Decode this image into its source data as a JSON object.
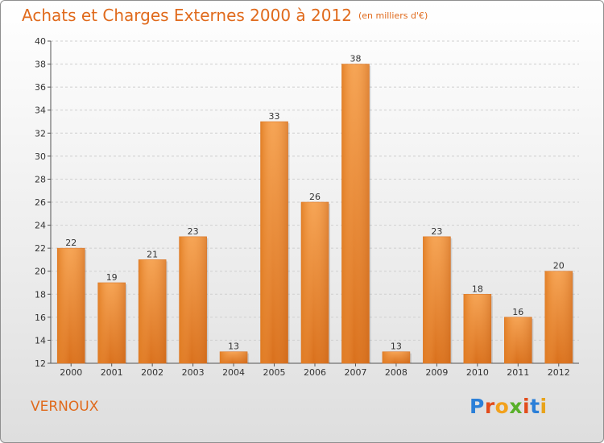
{
  "header": {
    "title": "Achats et Charges Externes 2000 à 2012",
    "unit": "(en milliers d'€)"
  },
  "footer": {
    "place": "VERNOUX",
    "logo_letters": [
      "P",
      "r",
      "o",
      "x",
      "i",
      "t",
      "i"
    ],
    "logo_colors": [
      "#2b7fd8",
      "#e24c1b",
      "#f2a11c",
      "#59b02a",
      "#e24c1b",
      "#2b7fd8",
      "#e8a31a"
    ]
  },
  "chart_data": {
    "type": "bar",
    "title": "Achats et Charges Externes 2000 à 2012",
    "subtitle": "(en milliers d'€)",
    "categories": [
      "2000",
      "2001",
      "2002",
      "2003",
      "2004",
      "2005",
      "2006",
      "2007",
      "2008",
      "2009",
      "2010",
      "2011",
      "2012"
    ],
    "values": [
      22,
      19,
      21,
      23,
      13,
      33,
      26,
      38,
      13,
      23,
      18,
      16,
      20
    ],
    "ylim": [
      12,
      40
    ],
    "yticks": [
      12,
      14,
      16,
      18,
      20,
      22,
      24,
      26,
      28,
      30,
      32,
      34,
      36,
      38,
      40
    ],
    "grid": true,
    "bar_color": "#f0902f",
    "text_color": "#e06a1c"
  }
}
